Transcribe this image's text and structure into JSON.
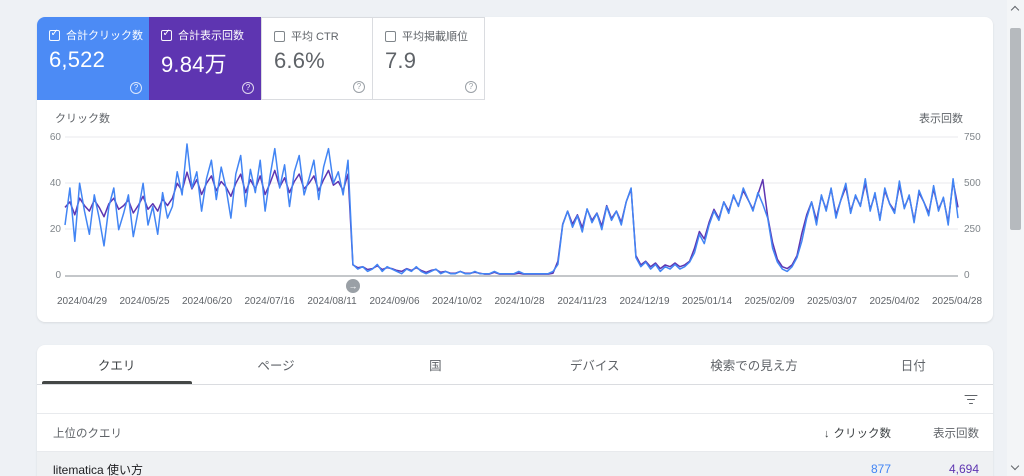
{
  "cards": [
    {
      "label": "合計クリック数",
      "value": "6,522",
      "checked": true,
      "color": "#4c8bf5"
    },
    {
      "label": "合計表示回数",
      "value": "9.84万",
      "checked": true,
      "color": "#5e35b1"
    },
    {
      "label": "平均 CTR",
      "value": "6.6%",
      "checked": false,
      "color": "#ffffff"
    },
    {
      "label": "平均掲載順位",
      "value": "7.9",
      "checked": false,
      "color": "#ffffff"
    }
  ],
  "icons": {
    "help": "?",
    "sort_desc": "↓",
    "annotation_arrow": "→"
  },
  "chart_data": {
    "type": "line",
    "title": "",
    "grid": "horizontal",
    "left_axis": {
      "title": "クリック数",
      "ticks": [
        "0",
        "20",
        "40",
        "60"
      ],
      "max": 60
    },
    "right_axis": {
      "title": "表示回数",
      "ticks": [
        "0",
        "250",
        "500",
        "750"
      ],
      "max": 750
    },
    "x_labels": [
      "2024/04/29",
      "2024/05/25",
      "2024/06/20",
      "2024/07/16",
      "2024/08/11",
      "2024/09/06",
      "2024/10/02",
      "2024/10/28",
      "2024/11/23",
      "2024/12/19",
      "2025/01/14",
      "2025/02/09",
      "2025/03/07",
      "2025/04/02",
      "2025/04/28"
    ],
    "series": [
      {
        "name": "表示回数",
        "axis": "right",
        "color": "#5e35b1",
        "values": [
          370,
          400,
          330,
          420,
          380,
          350,
          410,
          370,
          320,
          390,
          420,
          360,
          380,
          410,
          340,
          380,
          430,
          360,
          390,
          350,
          415,
          380,
          420,
          500,
          460,
          560,
          470,
          520,
          440,
          500,
          540,
          460,
          510,
          480,
          430,
          500,
          550,
          450,
          520,
          470,
          540,
          440,
          500,
          570,
          480,
          530,
          450,
          510,
          550,
          470,
          500,
          540,
          460,
          520,
          570,
          490,
          510,
          460,
          550,
          60,
          45,
          50,
          35,
          40,
          55,
          35,
          45,
          40,
          30,
          25,
          40,
          30,
          45,
          30,
          20,
          30,
          35,
          20,
          25,
          15,
          15,
          25,
          15,
          15,
          20,
          15,
          10,
          10,
          20,
          10,
          10,
          10,
          10,
          15,
          10,
          10,
          10,
          10,
          10,
          10,
          15,
          80,
          280,
          350,
          280,
          330,
          260,
          360,
          300,
          340,
          270,
          380,
          310,
          350,
          290,
          400,
          470,
          110,
          60,
          80,
          50,
          70,
          40,
          60,
          50,
          70,
          50,
          60,
          80,
          150,
          240,
          200,
          290,
          360,
          310,
          400,
          350,
          430,
          380,
          460,
          410,
          360,
          440,
          520,
          320,
          180,
          90,
          50,
          40,
          60,
          110,
          230,
          330,
          400,
          300,
          430,
          360,
          470,
          330,
          410,
          480,
          350,
          430,
          380,
          500,
          360,
          440,
          310,
          460,
          390,
          350,
          490,
          370,
          430,
          300,
          450,
          400,
          340,
          470,
          360,
          420,
          290,
          510,
          370
        ]
      },
      {
        "name": "クリック数",
        "axis": "left",
        "color": "#4285f4",
        "values": [
          22,
          38,
          15,
          40,
          28,
          18,
          35,
          25,
          13,
          30,
          38,
          20,
          27,
          35,
          17,
          28,
          40,
          22,
          30,
          18,
          36,
          25,
          30,
          45,
          35,
          57,
          38,
          45,
          28,
          42,
          50,
          33,
          47,
          38,
          25,
          44,
          52,
          30,
          46,
          36,
          50,
          28,
          43,
          55,
          38,
          48,
          30,
          45,
          52,
          35,
          42,
          50,
          33,
          47,
          55,
          40,
          45,
          35,
          50,
          5,
          3,
          4,
          2,
          3,
          5,
          2,
          4,
          3,
          2,
          1,
          3,
          2,
          4,
          2,
          1,
          2,
          3,
          1,
          2,
          1,
          1,
          2,
          1,
          1,
          2,
          1,
          1,
          1,
          2,
          1,
          1,
          1,
          1,
          2,
          1,
          1,
          1,
          1,
          1,
          1,
          2,
          5,
          22,
          28,
          21,
          26,
          19,
          29,
          23,
          27,
          20,
          30,
          24,
          28,
          22,
          32,
          38,
          8,
          4,
          6,
          3,
          5,
          2,
          4,
          3,
          5,
          3,
          4,
          6,
          10,
          18,
          14,
          22,
          28,
          24,
          32,
          27,
          35,
          30,
          38,
          33,
          28,
          36,
          31,
          25,
          12,
          6,
          3,
          2,
          4,
          8,
          15,
          25,
          32,
          22,
          35,
          28,
          38,
          25,
          33,
          40,
          27,
          35,
          30,
          42,
          28,
          36,
          24,
          38,
          31,
          27,
          41,
          29,
          35,
          23,
          37,
          32,
          26,
          39,
          28,
          34,
          22,
          42,
          25
        ]
      }
    ]
  },
  "tabs": [
    {
      "label": "クエリ",
      "active": true
    },
    {
      "label": "ページ",
      "active": false
    },
    {
      "label": "国",
      "active": false
    },
    {
      "label": "デバイス",
      "active": false
    },
    {
      "label": "検索での見え方",
      "active": false
    },
    {
      "label": "日付",
      "active": false
    }
  ],
  "table": {
    "header_query": "上位のクエリ",
    "header_clicks": "クリック数",
    "header_impressions": "表示回数",
    "rows": [
      {
        "query": "litematica 使い方",
        "clicks": "877",
        "impressions": "4,694"
      }
    ]
  }
}
